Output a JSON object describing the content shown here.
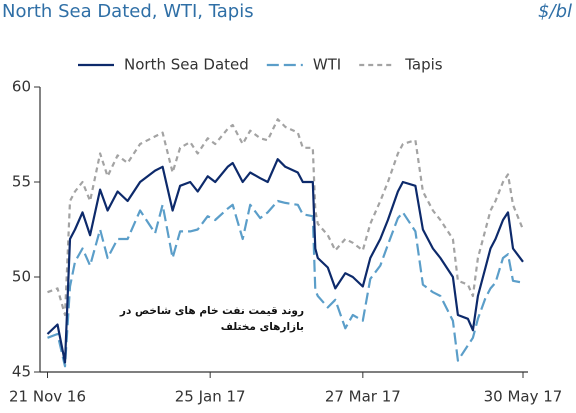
{
  "chart_data": {
    "type": "line",
    "title": "North Sea Dated, WTI, Tapis",
    "unit_label": "$/bl",
    "annotation": "روند قیمت نفت خام های شاخص در بازارهای مختلف",
    "x": [
      "2016-11-21",
      "2016-11-25",
      "2016-11-28",
      "2016-11-30",
      "2016-12-02",
      "2016-12-05",
      "2016-12-08",
      "2016-12-12",
      "2016-12-15",
      "2016-12-19",
      "2016-12-23",
      "2016-12-28",
      "2017-01-03",
      "2017-01-06",
      "2017-01-10",
      "2017-01-13",
      "2017-01-17",
      "2017-01-20",
      "2017-01-24",
      "2017-01-27",
      "2017-02-01",
      "2017-02-03",
      "2017-02-07",
      "2017-02-10",
      "2017-02-14",
      "2017-02-17",
      "2017-02-21",
      "2017-02-24",
      "2017-03-01",
      "2017-03-03",
      "2017-03-07",
      "2017-03-08",
      "2017-03-09",
      "2017-03-13",
      "2017-03-16",
      "2017-03-20",
      "2017-03-23",
      "2017-03-27",
      "2017-03-30",
      "2017-04-03",
      "2017-04-06",
      "2017-04-10",
      "2017-04-12",
      "2017-04-17",
      "2017-04-20",
      "2017-04-24",
      "2017-04-27",
      "2017-05-02",
      "2017-05-04",
      "2017-05-08",
      "2017-05-10",
      "2017-05-12",
      "2017-05-15",
      "2017-05-17",
      "2017-05-19",
      "2017-05-22",
      "2017-05-24",
      "2017-05-26",
      "2017-05-30"
    ],
    "series": [
      {
        "name": "North Sea Dated",
        "color": "#0d2a6b",
        "dash": "none",
        "values": [
          47.0,
          47.5,
          45.5,
          52.0,
          52.5,
          53.4,
          52.2,
          54.6,
          53.5,
          54.5,
          54.0,
          55.0,
          55.6,
          55.8,
          53.5,
          54.8,
          55.0,
          54.5,
          55.3,
          55.0,
          55.8,
          56.0,
          55.0,
          55.5,
          55.2,
          55.0,
          56.2,
          55.8,
          55.5,
          55.0,
          55.0,
          51.5,
          51.0,
          50.5,
          49.4,
          50.2,
          50.0,
          49.5,
          51.0,
          52.0,
          53.0,
          54.5,
          55.0,
          54.8,
          52.5,
          51.5,
          51.0,
          50.0,
          48.0,
          47.8,
          47.2,
          49.0,
          50.5,
          51.5,
          52.0,
          53.0,
          53.4,
          51.5,
          50.8
        ]
      },
      {
        "name": "WTI",
        "color": "#5b9ec9",
        "dash": "12 5",
        "values": [
          46.8,
          47.0,
          45.3,
          49.5,
          50.8,
          51.5,
          50.6,
          52.5,
          51.0,
          52.0,
          52.0,
          53.5,
          52.3,
          53.8,
          51.0,
          52.4,
          52.4,
          52.5,
          53.2,
          53.0,
          53.6,
          53.8,
          52.0,
          53.8,
          53.1,
          53.4,
          54.0,
          53.9,
          53.8,
          53.3,
          53.2,
          49.3,
          49.0,
          48.4,
          48.8,
          47.3,
          48.0,
          47.7,
          49.9,
          50.6,
          51.7,
          53.1,
          53.4,
          52.4,
          49.6,
          49.2,
          49.0,
          47.7,
          45.6,
          46.4,
          46.8,
          47.8,
          48.9,
          49.4,
          49.7,
          51.0,
          51.2,
          49.8,
          49.7
        ]
      },
      {
        "name": "Tapis",
        "color": "#a3a3a3",
        "dash": "5 4",
        "values": [
          49.2,
          49.4,
          48.0,
          54.0,
          54.5,
          55.0,
          54.0,
          56.5,
          55.3,
          56.4,
          56.0,
          57.0,
          57.4,
          57.6,
          55.5,
          56.8,
          57.1,
          56.5,
          57.3,
          57.0,
          57.8,
          58.0,
          57.0,
          57.7,
          57.3,
          57.2,
          58.3,
          57.9,
          57.6,
          56.8,
          56.8,
          53.5,
          52.8,
          52.2,
          51.4,
          52.0,
          51.8,
          51.4,
          52.8,
          54.0,
          55.0,
          56.5,
          57.0,
          57.2,
          54.5,
          53.5,
          53.0,
          52.0,
          49.8,
          49.6,
          49.0,
          51.0,
          52.5,
          53.5,
          54.0,
          55.0,
          55.4,
          53.8,
          52.5
        ]
      }
    ],
    "xlim": [
      "2016-11-18",
      "2017-06-01"
    ],
    "xticks": [
      {
        "value": "2016-11-21",
        "label": "21 Nov 16"
      },
      {
        "value": "2017-01-25",
        "label": "25 Jan 17"
      },
      {
        "value": "2017-03-27",
        "label": "27 Mar 17"
      },
      {
        "value": "2017-05-30",
        "label": "30 May 17"
      }
    ],
    "ylim": [
      45,
      60
    ],
    "yticks": [
      45,
      50,
      55,
      60
    ],
    "legend": "top"
  }
}
